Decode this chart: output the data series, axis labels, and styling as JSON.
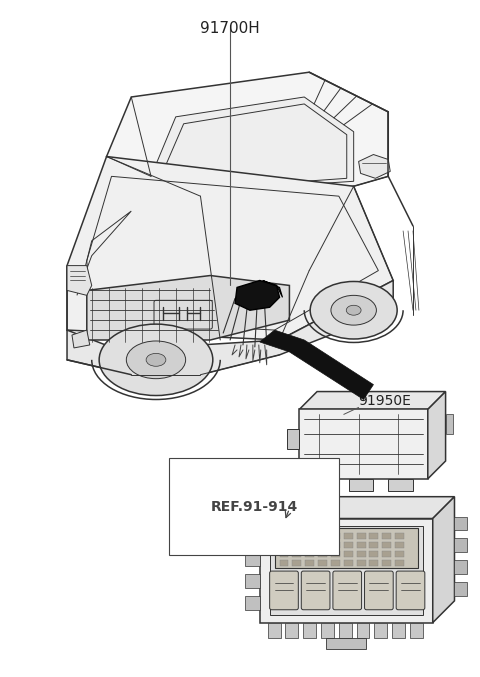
{
  "bg_color": "#ffffff",
  "line_color": "#333333",
  "black": "#000000",
  "gray": "#888888",
  "label_91700H": "91700H",
  "label_91950E": "91950E",
  "label_ref": "REF.91-914",
  "fig_width": 4.8,
  "fig_height": 6.77,
  "dpi": 100
}
